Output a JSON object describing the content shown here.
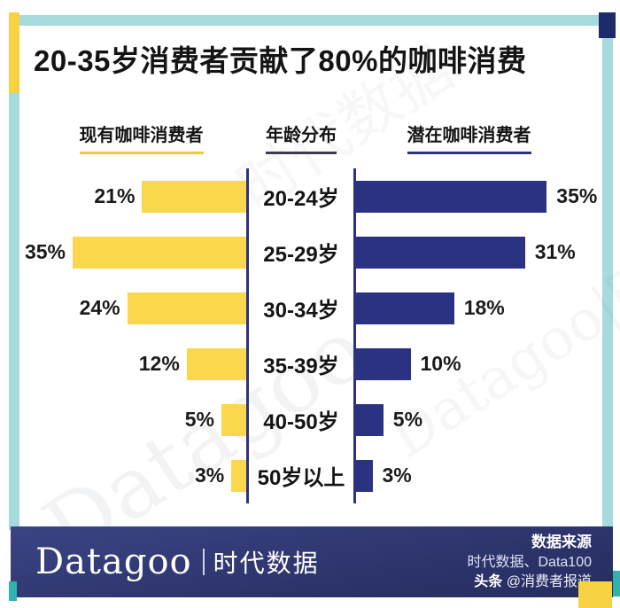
{
  "title": "20-35岁消费者贡献了80%的咖啡消费",
  "headers": {
    "left": "现有咖啡消费者",
    "center": "年龄分布",
    "right": "潜在咖啡消费者"
  },
  "chart_data": {
    "type": "bar",
    "subtype": "butterfly-horizontal",
    "title": "20-35岁消费者贡献了80%的咖啡消费",
    "categories": [
      "20-24岁",
      "25-29岁",
      "30-34岁",
      "35-39岁",
      "40-50岁",
      "50岁以上"
    ],
    "series": [
      {
        "name": "现有咖啡消费者",
        "side": "left",
        "color": "#FAD74D",
        "values": [
          21,
          35,
          24,
          12,
          5,
          3
        ]
      },
      {
        "name": "潜在咖啡消费者",
        "side": "right",
        "color": "#2B3282",
        "values": [
          35,
          31,
          18,
          10,
          5,
          3
        ]
      }
    ],
    "value_suffix": "%",
    "xlim": [
      0,
      35
    ],
    "grid": false,
    "legend_position": "column-headers"
  },
  "footer": {
    "brand": "Datagoo",
    "brand_cn": "时代数据",
    "source_label": "数据来源",
    "source_names": "时代数据、Data100",
    "social_prefix": "头条",
    "social_handle": "@消费者报道"
  },
  "watermark": {
    "text_en": "Datagoo",
    "text_cn": "时代数据",
    "text_full": "Datagoo|时代数据"
  },
  "colors": {
    "bar_yellow": "#FAD74D",
    "bar_navy": "#2B3282",
    "frame_teal": "#A7DADC",
    "accent_yellow": "#F7D344",
    "accent_teal": "#2FB3AE",
    "corner_navy": "#1C2A6B",
    "footer_navy": "#2B3269",
    "text": "#1B1B1B"
  }
}
